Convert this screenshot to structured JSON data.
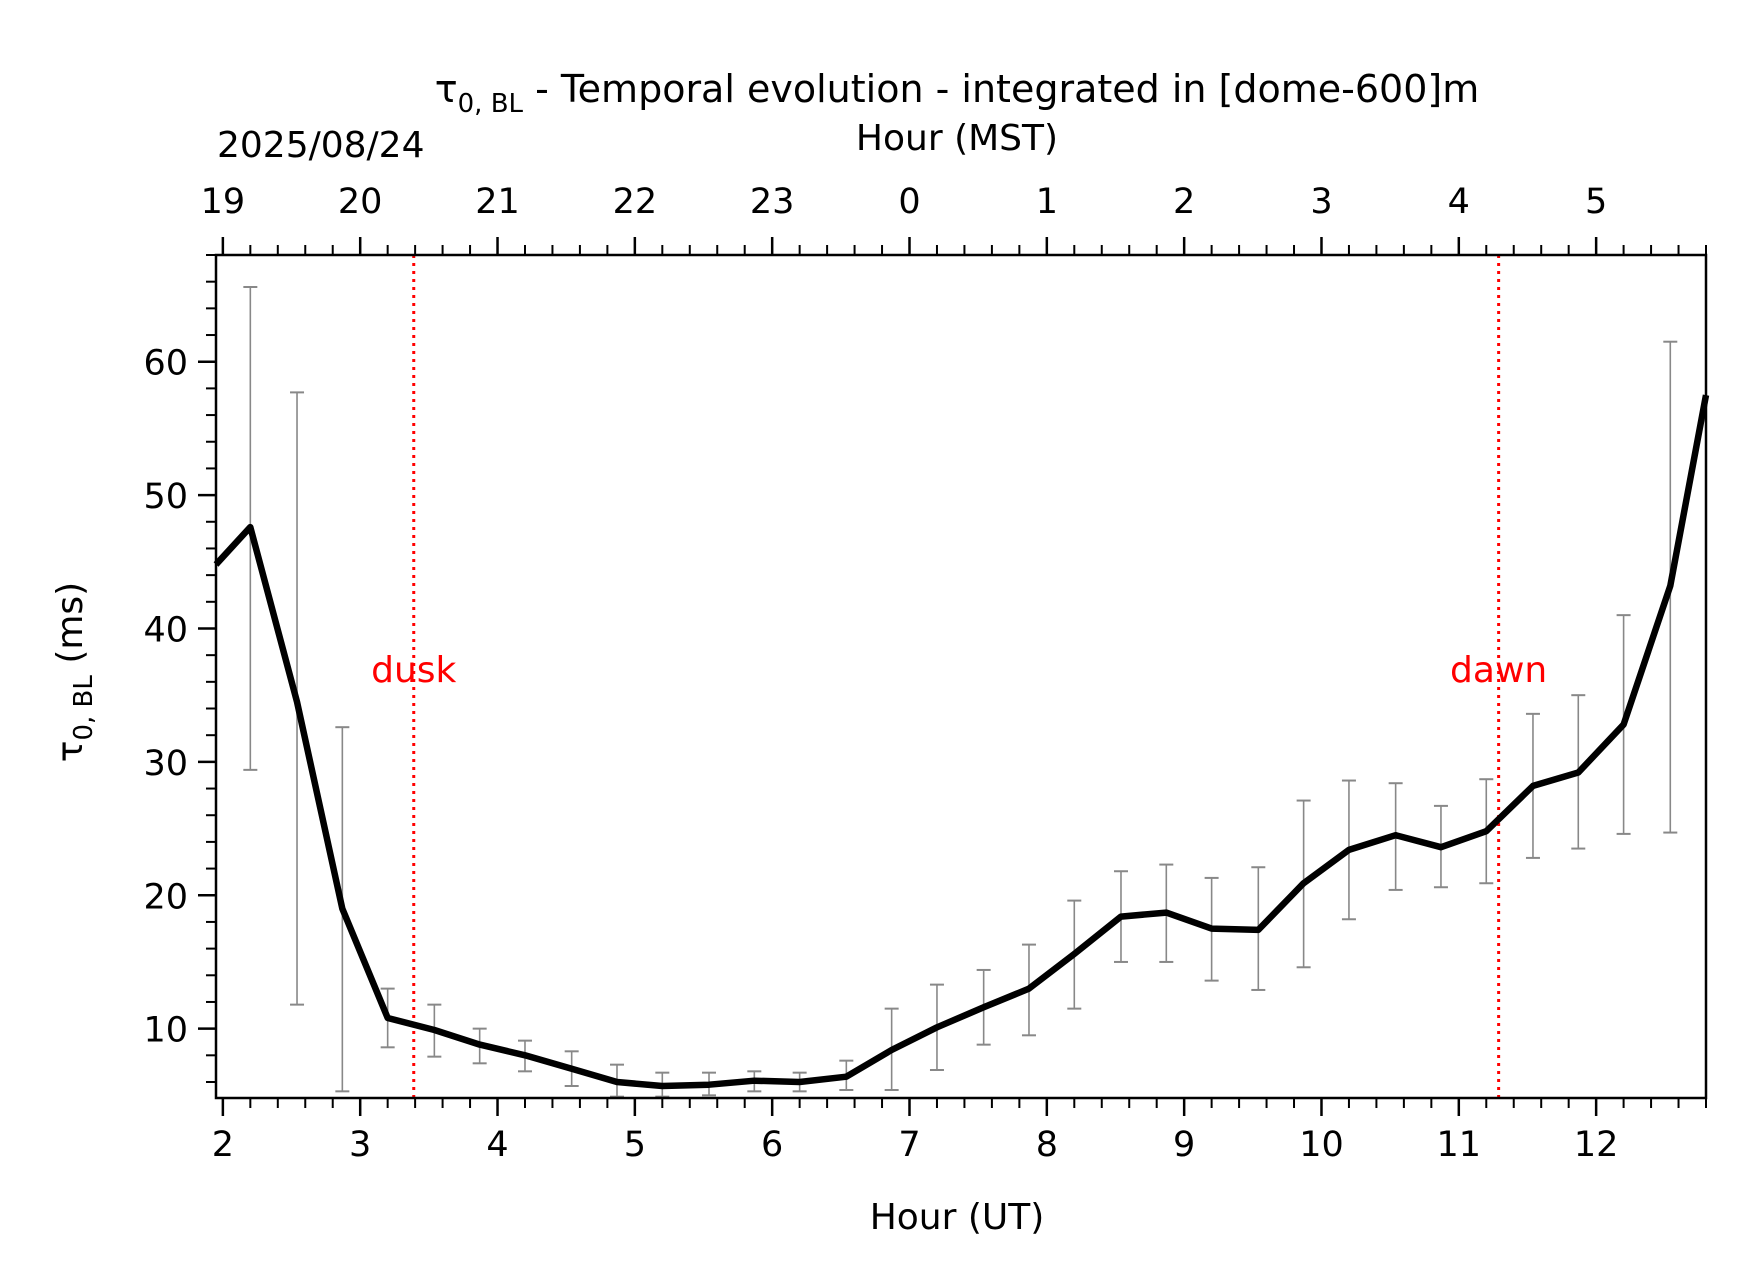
{
  "chart_data": {
    "type": "line",
    "title_symbol": "τ",
    "title_subscript": "0, BL",
    "title_rest": " - Temporal evolution - integrated in [dome-600]m",
    "date_label": "2025/08/24",
    "xlabel": "Hour (UT)",
    "x2label": "Hour (MST)",
    "ylabel_symbol": "τ",
    "ylabel_subscript": "0, BL",
    "ylabel_rest": " (ms)",
    "xlim": [
      1.95,
      12.8
    ],
    "ylim": [
      4.8,
      68
    ],
    "x_ticks": [
      2,
      3,
      4,
      5,
      6,
      7,
      8,
      9,
      10,
      11,
      12
    ],
    "x_tick_labels": [
      "2",
      "3",
      "4",
      "5",
      "6",
      "7",
      "8",
      "9",
      "10",
      "11",
      "12"
    ],
    "x2_ticks": [
      2,
      3,
      4,
      5,
      6,
      7,
      8,
      9,
      10,
      11,
      12
    ],
    "x2_tick_labels": [
      "19",
      "20",
      "21",
      "22",
      "23",
      "0",
      "1",
      "2",
      "3",
      "4",
      "5"
    ],
    "y_ticks": [
      10,
      20,
      30,
      40,
      50,
      60
    ],
    "y_tick_labels": [
      "10",
      "20",
      "30",
      "40",
      "50",
      "60"
    ],
    "grid": false,
    "series": [
      {
        "color": "#000000",
        "x": [
          1.95,
          2.2,
          2.54,
          2.87,
          3.2,
          3.54,
          3.87,
          4.2,
          4.54,
          4.87,
          5.2,
          5.54,
          5.87,
          6.2,
          6.54,
          6.87,
          7.2,
          7.54,
          7.87,
          8.2,
          8.54,
          8.87,
          9.2,
          9.54,
          9.87,
          10.2,
          10.54,
          10.87,
          11.2,
          11.54,
          11.87,
          12.2,
          12.54,
          12.8
        ],
        "y": [
          44.8,
          47.6,
          34.5,
          19.0,
          10.8,
          9.9,
          8.8,
          8.0,
          7.0,
          6.0,
          5.7,
          5.8,
          6.1,
          6.0,
          6.4,
          8.4,
          10.1,
          11.6,
          13.0,
          15.6,
          18.4,
          18.7,
          17.5,
          17.4,
          20.9,
          23.4,
          24.5,
          23.6,
          24.8,
          28.2,
          29.2,
          32.8,
          43.2,
          57.5
        ]
      }
    ],
    "errorbars": {
      "color": "#888888",
      "x": [
        2.2,
        2.54,
        2.87,
        3.2,
        3.54,
        3.87,
        4.2,
        4.54,
        4.87,
        5.2,
        5.54,
        5.87,
        6.2,
        6.54,
        6.87,
        7.2,
        7.54,
        7.87,
        8.2,
        8.54,
        8.87,
        9.2,
        9.54,
        9.87,
        10.2,
        10.54,
        10.87,
        11.2,
        11.54,
        11.87,
        12.2,
        12.54
      ],
      "low": [
        29.4,
        11.8,
        5.3,
        8.6,
        7.9,
        7.4,
        6.8,
        5.7,
        4.9,
        4.9,
        5.0,
        5.3,
        5.3,
        5.4,
        5.4,
        6.9,
        8.8,
        9.5,
        11.5,
        15.0,
        15.0,
        13.6,
        12.9,
        14.6,
        18.2,
        20.4,
        20.6,
        20.9,
        22.8,
        23.5,
        24.6,
        24.7
      ],
      "high": [
        65.6,
        57.7,
        32.6,
        13.0,
        11.8,
        10.0,
        9.1,
        8.3,
        7.3,
        6.7,
        6.7,
        6.8,
        6.7,
        7.6,
        11.5,
        13.3,
        14.4,
        16.3,
        19.6,
        21.8,
        22.3,
        21.3,
        22.1,
        27.1,
        28.6,
        28.4,
        26.7,
        28.7,
        33.6,
        35.0,
        41.0,
        61.5
      ]
    },
    "vlines": [
      {
        "x": 3.39,
        "label": "dusk",
        "color": "#ff0000",
        "label_y": 36
      },
      {
        "x": 11.29,
        "label": "dawn",
        "color": "#ff0000",
        "label_y": 36
      }
    ]
  }
}
